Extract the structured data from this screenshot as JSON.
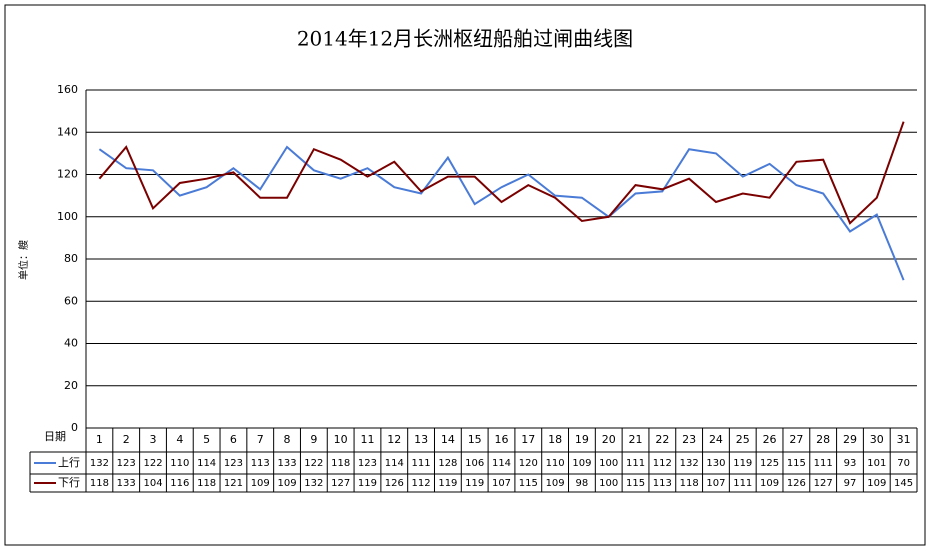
{
  "chart_data": {
    "type": "line",
    "title": "2014年12月长洲枢纽船舶过闸曲线图",
    "y_label": "单位：艘",
    "x_label": "日期",
    "categories": [
      "1",
      "2",
      "3",
      "4",
      "5",
      "6",
      "7",
      "8",
      "9",
      "10",
      "11",
      "12",
      "13",
      "14",
      "15",
      "16",
      "17",
      "18",
      "19",
      "20",
      "21",
      "22",
      "23",
      "24",
      "25",
      "26",
      "27",
      "28",
      "29",
      "30",
      "31"
    ],
    "series": [
      {
        "name": "上行",
        "color": "#4a7bd6",
        "values": [
          132,
          123,
          122,
          110,
          114,
          123,
          113,
          133,
          122,
          118,
          123,
          114,
          111,
          128,
          106,
          114,
          120,
          110,
          109,
          100,
          111,
          112,
          132,
          130,
          119,
          125,
          115,
          111,
          93,
          101,
          70
        ]
      },
      {
        "name": "下行",
        "color": "#7b0000",
        "values": [
          118,
          133,
          104,
          116,
          118,
          121,
          109,
          109,
          132,
          127,
          119,
          126,
          112,
          119,
          119,
          107,
          115,
          109,
          98,
          100,
          115,
          113,
          118,
          107,
          111,
          109,
          126,
          127,
          97,
          109,
          145
        ]
      }
    ],
    "ylim": [
      0,
      160
    ],
    "yticks": [
      0,
      20,
      40,
      60,
      80,
      100,
      120,
      140,
      160
    ],
    "grid": true
  }
}
